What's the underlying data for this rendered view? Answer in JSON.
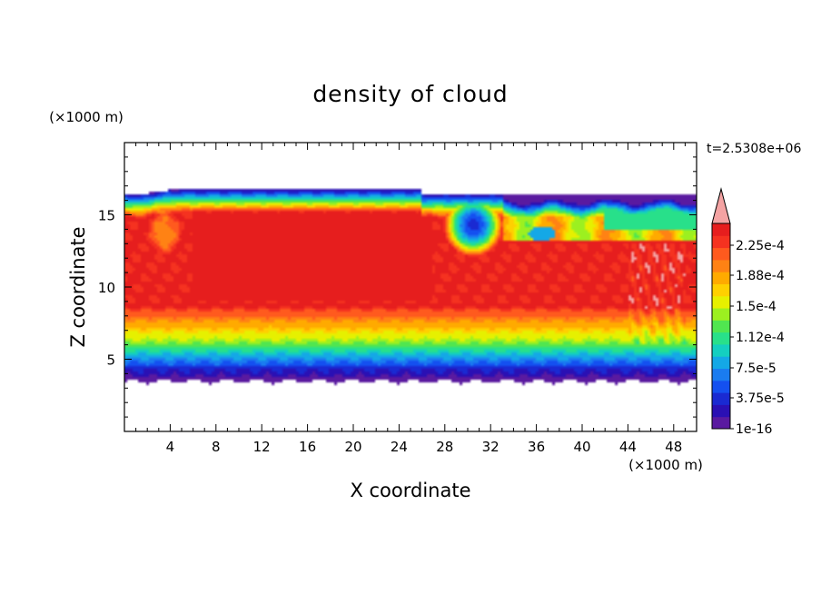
{
  "chart_data": {
    "type": "heatmap",
    "title": "density of cloud",
    "xlabel": "X coordinate",
    "ylabel": "Z coordinate",
    "x_unit": "(×1000 m)",
    "y_unit": "(×1000 m)",
    "time_label": "t=2.5308e+06",
    "xlim": [
      0,
      50
    ],
    "ylim": [
      0,
      20
    ],
    "x_ticks": [
      "4",
      "8",
      "12",
      "16",
      "20",
      "24",
      "28",
      "32",
      "36",
      "40",
      "44",
      "48"
    ],
    "y_ticks": [
      "5",
      "10",
      "15"
    ],
    "colorbar": {
      "labels": [
        "1e-16",
        "3.75e-5",
        "7.5e-5",
        "1.12e-4",
        "1.5e-4",
        "1.88e-4",
        "2.25e-4"
      ],
      "levels": 17,
      "colors": [
        "#5a1aa0",
        "#2a10b4",
        "#1a2ad2",
        "#1450f0",
        "#1a7cf0",
        "#14a8e6",
        "#14cfc0",
        "#28e08a",
        "#50e650",
        "#9cf020",
        "#e6f000",
        "#ffd000",
        "#ffaa00",
        "#ff8214",
        "#ff5a1e",
        "#f53220",
        "#e61e1e"
      ],
      "extend_color": "#f4a3a3"
    },
    "field_summary": {
      "cloud_base_km": 3.5,
      "cloud_top_km": 16.8,
      "core_max_level": "2.25e-4",
      "core_height_range_km": [
        8,
        15
      ]
    }
  }
}
